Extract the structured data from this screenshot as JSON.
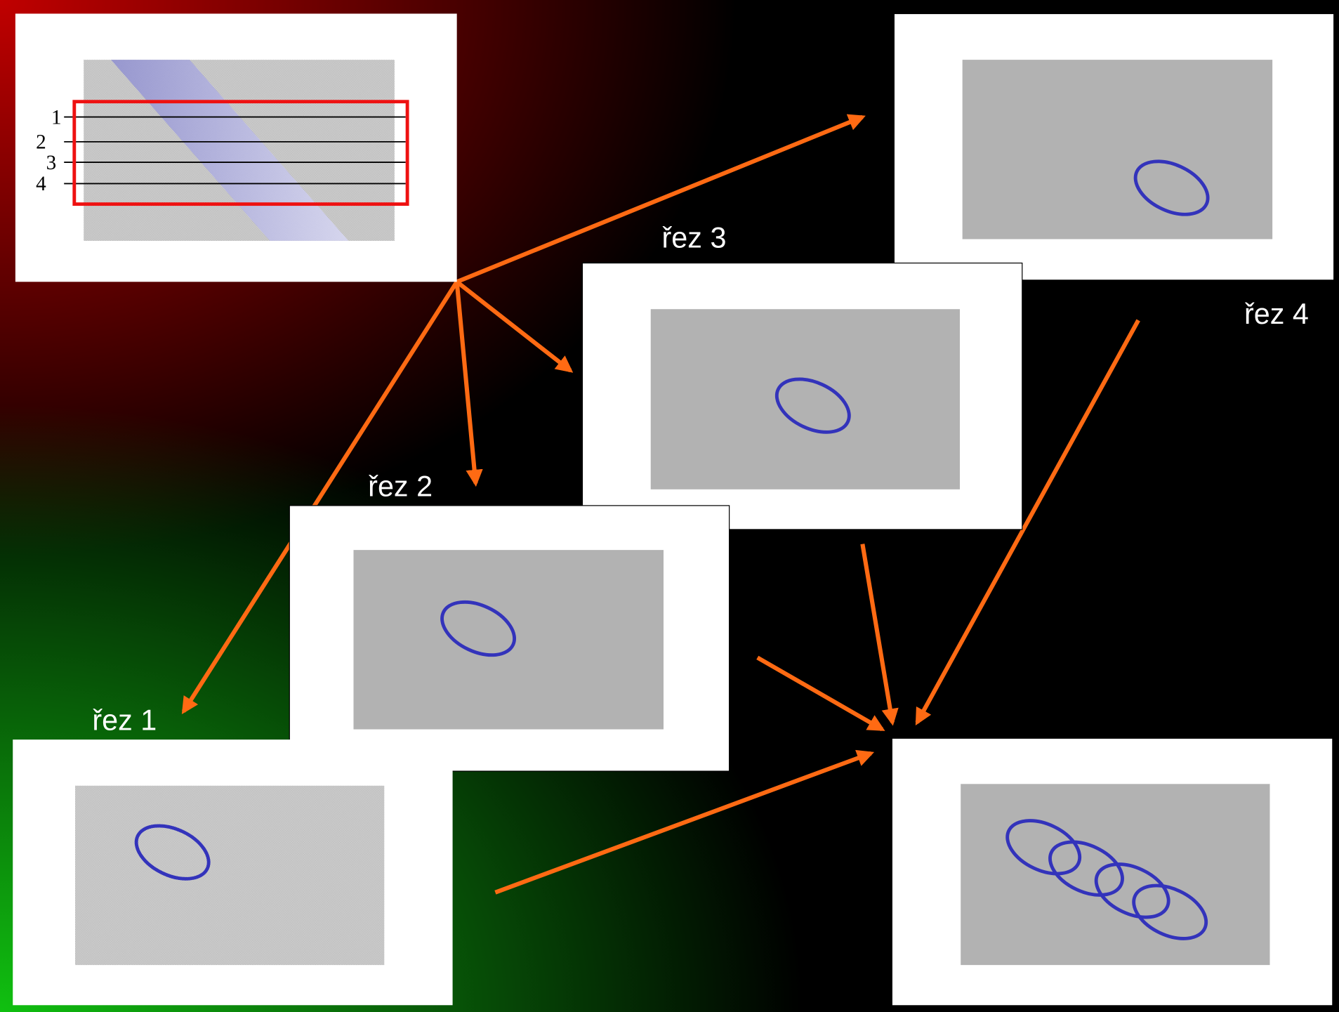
{
  "slice_numbers": [
    "1",
    "2",
    "3",
    "4"
  ],
  "labels": [
    "řez 1",
    "řez 2",
    "řez 3",
    "řez 4"
  ]
}
